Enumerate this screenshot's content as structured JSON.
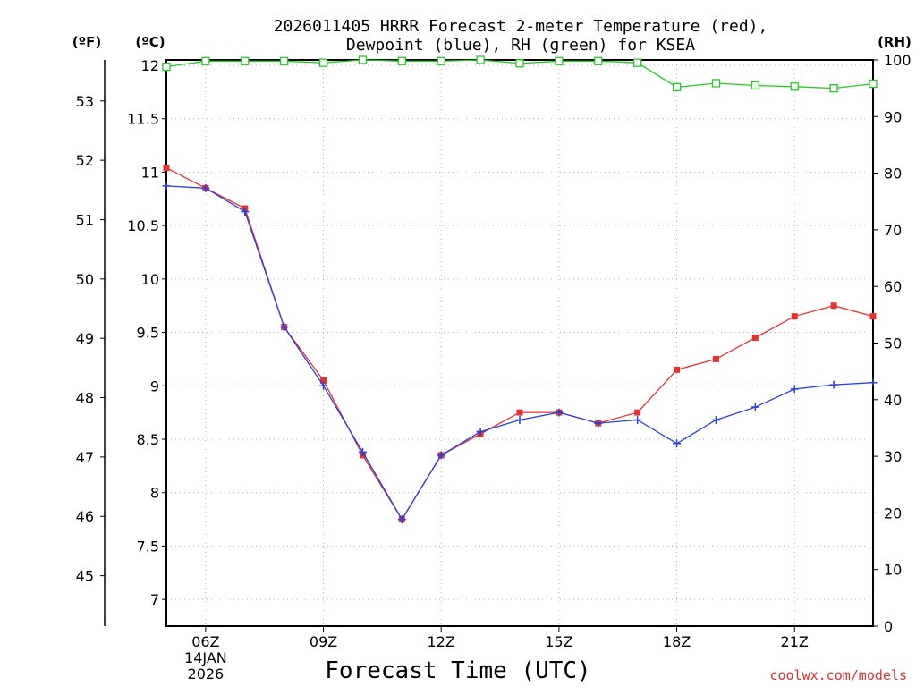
{
  "chart_data": {
    "type": "line",
    "title_line1": "2026011405 HRRR Forecast 2-meter Temperature (red),",
    "title_line2": "Dewpoint (blue), RH (green) for KSEA",
    "xlabel": "Forecast Time (UTC)",
    "credit": "coolwx.com/models",
    "x_hours": [
      5,
      6,
      7,
      8,
      9,
      10,
      11,
      12,
      13,
      14,
      15,
      16,
      17,
      18,
      19,
      20,
      21,
      22,
      23
    ],
    "xlim": [
      5,
      23
    ],
    "x_ticks": [
      {
        "hour": 6,
        "label": "06Z",
        "sub1": "14JAN",
        "sub2": "2026"
      },
      {
        "hour": 9,
        "label": "09Z"
      },
      {
        "hour": 12,
        "label": "12Z"
      },
      {
        "hour": 15,
        "label": "15Z"
      },
      {
        "hour": 18,
        "label": "18Z"
      },
      {
        "hour": 21,
        "label": "21Z"
      }
    ],
    "y_left_celsius": {
      "unit": "(ºC)",
      "range": [
        6.75,
        12.05
      ],
      "ticks": [
        "7",
        "7.5",
        "8",
        "8.5",
        "9",
        "9.5",
        "10",
        "10.5",
        "11",
        "11.5",
        "12"
      ]
    },
    "y_left_fahrenheit": {
      "unit": "(ºF)",
      "ticks": [
        "45",
        "46",
        "47",
        "48",
        "49",
        "50",
        "51",
        "52",
        "53"
      ]
    },
    "y_right_rh": {
      "unit": "(RH)",
      "range": [
        0,
        100
      ],
      "ticks": [
        "0",
        "10",
        "20",
        "30",
        "40",
        "50",
        "60",
        "70",
        "80",
        "90",
        "100"
      ]
    },
    "series": [
      {
        "name": "Temperature",
        "color": "#e83030",
        "axis": "celsius",
        "marker": "filled-square",
        "values": [
          11.04,
          10.85,
          10.66,
          9.55,
          9.05,
          8.35,
          7.75,
          8.35,
          8.55,
          8.75,
          8.75,
          8.65,
          8.75,
          9.15,
          9.25,
          9.45,
          9.65,
          9.75,
          9.65
        ]
      },
      {
        "name": "Dewpoint",
        "color": "#2a3fe0",
        "axis": "celsius",
        "marker": "plus",
        "values": [
          10.87,
          10.85,
          10.63,
          9.55,
          9.0,
          8.38,
          7.75,
          8.35,
          8.57,
          8.68,
          8.75,
          8.65,
          8.68,
          8.46,
          8.68,
          8.8,
          8.97,
          9.01,
          9.03
        ]
      },
      {
        "name": "RH",
        "color": "#22cc22",
        "axis": "rh",
        "marker": "open-square",
        "values": [
          98.8,
          99.8,
          99.8,
          99.8,
          99.5,
          100,
          99.8,
          99.8,
          100,
          99.4,
          99.8,
          99.8,
          99.5,
          95.2,
          95.9,
          95.5,
          95.3,
          95.0,
          95.8
        ]
      }
    ]
  }
}
